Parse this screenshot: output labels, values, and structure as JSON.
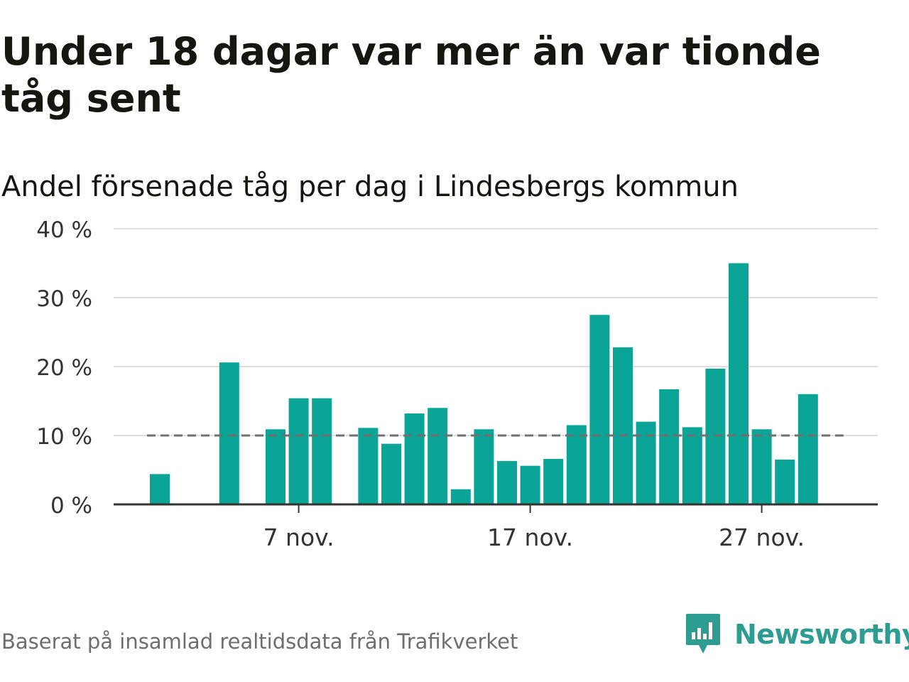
{
  "chart_data": {
    "type": "bar",
    "title": "Under 18 dagar var mer än var tionde tåg sent",
    "subtitle": "Andel försenade tåg per dag i Lindesbergs kommun",
    "xlabel": "",
    "ylabel": "",
    "x": [
      "1 nov.",
      "2 nov.",
      "3 nov.",
      "4 nov.",
      "5 nov.",
      "6 nov.",
      "7 nov.",
      "8 nov.",
      "9 nov.",
      "10 nov.",
      "11 nov.",
      "12 nov.",
      "13 nov.",
      "14 nov.",
      "15 nov.",
      "16 nov.",
      "17 nov.",
      "18 nov.",
      "19 nov.",
      "20 nov.",
      "21 nov.",
      "22 nov.",
      "23 nov.",
      "24 nov.",
      "25 nov.",
      "26 nov.",
      "27 nov.",
      "28 nov.",
      "29 nov."
    ],
    "values": [
      4.4,
      null,
      null,
      20.6,
      null,
      10.9,
      15.4,
      15.4,
      null,
      11.1,
      8.8,
      13.2,
      14.0,
      2.2,
      10.9,
      6.3,
      5.6,
      6.6,
      11.5,
      27.5,
      22.8,
      12.0,
      16.7,
      11.2,
      19.7,
      35.0,
      10.9,
      6.5,
      16.0
    ],
    "ylim": [
      0,
      40
    ],
    "yticks": [
      0,
      10,
      20,
      30,
      40
    ],
    "ytick_labels": [
      "0 %",
      "10 %",
      "20 %",
      "30 %",
      "40 %"
    ],
    "xticks": [
      "7 nov.",
      "17 nov.",
      "27 nov."
    ],
    "reference_line": {
      "value": 10,
      "style": "dashed"
    },
    "grid": true,
    "legend": "none",
    "colors": {
      "bar": "#0aa596",
      "grid": "#dedede",
      "axis": "#333333",
      "reference": "#707070"
    }
  },
  "footer": {
    "source": "Baserat på insamlad realtidsdata från Trafikverket",
    "brand": "Newsworthy",
    "brand_color": "#2e9d91"
  }
}
